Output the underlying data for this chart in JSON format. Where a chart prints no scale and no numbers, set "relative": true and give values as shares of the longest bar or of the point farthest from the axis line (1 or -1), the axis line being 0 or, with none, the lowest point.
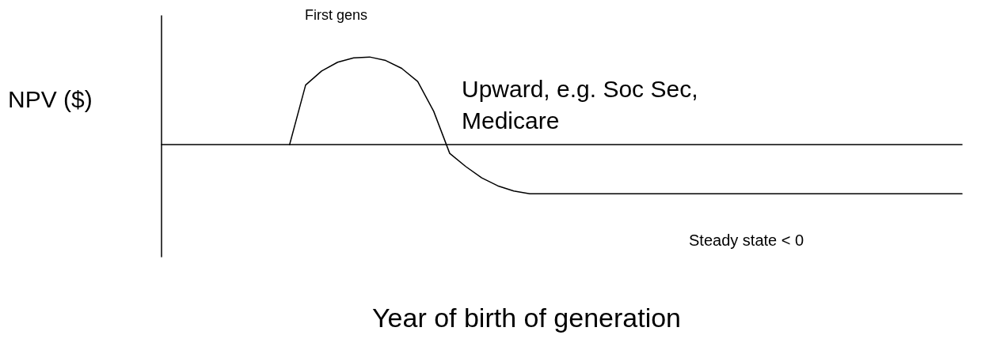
{
  "chart_data": {
    "type": "line",
    "relative": true,
    "xlabel": "Year of birth of generation",
    "ylabel": "NPV ($)",
    "annotations": [
      "First gens",
      "Upward, e.g. Soc Sec,\nMedicare",
      "Steady state < 0"
    ],
    "categories": [
      null,
      null,
      null,
      null,
      null,
      null,
      null,
      null,
      null,
      null,
      null,
      null,
      null,
      null,
      null,
      null,
      null,
      null,
      null,
      null,
      null,
      null,
      null,
      null,
      null,
      null,
      null,
      null,
      null,
      null,
      null,
      null,
      null,
      null,
      null,
      null,
      null,
      null,
      null,
      null,
      null,
      null,
      null,
      null,
      null,
      null,
      null,
      null,
      null,
      null,
      null
    ],
    "series": [
      {
        "color": "#000000",
        "values": [
          null,
          null,
          null,
          null,
          null,
          null,
          null,
          null,
          0,
          0.68,
          0.84,
          0.94,
          0.99,
          1,
          0.96,
          0.87,
          0.72,
          0.38,
          -0.1,
          -0.25,
          -0.38,
          -0.47,
          -0.53,
          -0.56,
          -0.56,
          -0.56,
          -0.56,
          -0.56,
          -0.56,
          -0.56,
          -0.56,
          -0.56,
          -0.56,
          -0.56,
          -0.56,
          -0.56,
          -0.56,
          -0.56,
          -0.56,
          -0.56,
          -0.56,
          -0.56,
          -0.56,
          -0.56,
          -0.56,
          -0.56,
          -0.56,
          -0.56,
          -0.56,
          -0.56,
          -0.56
        ]
      }
    ],
    "marker": "none",
    "line_style": "solid",
    "grid": false
  }
}
